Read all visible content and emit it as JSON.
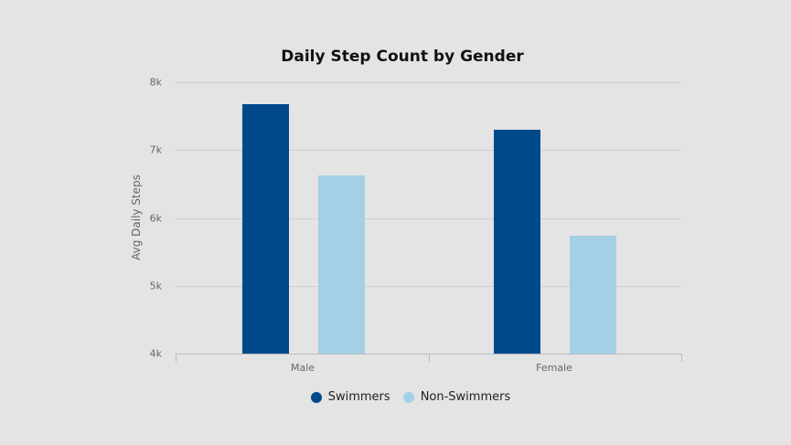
{
  "chart_data": {
    "type": "bar",
    "title": "Daily Step Count by Gender",
    "xlabel": "",
    "ylabel": "Avg Daily Steps",
    "categories": [
      "Male",
      "Female"
    ],
    "series": [
      {
        "name": "Swimmers",
        "color": "#004a8c",
        "values": [
          7680,
          7300
        ]
      },
      {
        "name": "Non-Swimmers",
        "color": "#a3d0e6",
        "values": [
          6630,
          5740
        ]
      }
    ],
    "ylim": [
      4000,
      8000
    ],
    "yticks": [
      4000,
      5000,
      6000,
      7000,
      8000
    ],
    "ytick_labels": [
      "4k",
      "5k",
      "6k",
      "7k",
      "8k"
    ],
    "grid": true,
    "legend_position": "bottom"
  },
  "colors": {
    "background": "#e4e4e4",
    "swimmers": "#004a8c",
    "non_swimmers": "#a3d0e6"
  }
}
